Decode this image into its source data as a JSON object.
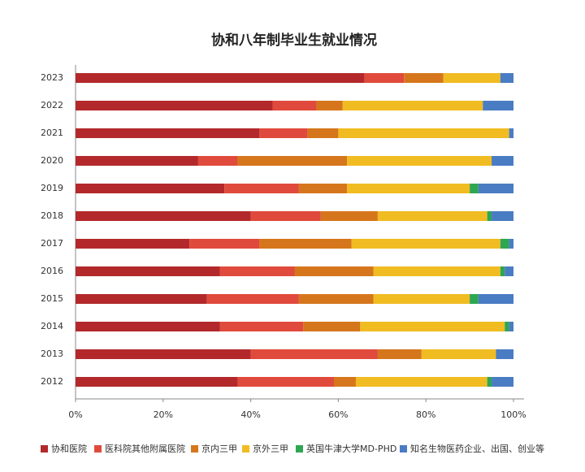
{
  "chart_data": {
    "type": "stacked-barh",
    "title": "协和八年制毕业生就业情况",
    "categories": [
      "2023",
      "2022",
      "2021",
      "2020",
      "2019",
      "2018",
      "2017",
      "2016",
      "2015",
      "2014",
      "2013",
      "2012"
    ],
    "series": [
      {
        "name": "协和医院",
        "color": "#b3292b",
        "values": [
          66,
          45,
          42,
          28,
          34,
          40,
          26,
          33,
          30,
          33,
          40,
          37
        ]
      },
      {
        "name": "医科院其他附属医院",
        "color": "#e04a3c",
        "values": [
          9,
          10,
          11,
          9,
          17,
          16,
          16,
          17,
          21,
          19,
          29,
          22
        ]
      },
      {
        "name": "京内三甲",
        "color": "#d6761c",
        "values": [
          9,
          6,
          7,
          25,
          11,
          13,
          21,
          18,
          17,
          13,
          10,
          5
        ]
      },
      {
        "name": "京外三甲",
        "color": "#f0bc22",
        "values": [
          13,
          32,
          39,
          33,
          28,
          25,
          34,
          29,
          22,
          33,
          17,
          30
        ]
      },
      {
        "name": "英国牛津大学MD-PHD",
        "color": "#2fa653",
        "values": [
          0,
          0,
          0,
          0,
          2,
          1,
          2,
          1,
          2,
          1,
          0,
          1
        ]
      },
      {
        "name": "知名生物医药企业、出国、创业等",
        "color": "#4a7cc3",
        "values": [
          3,
          7,
          1,
          5,
          8,
          5,
          1,
          2,
          8,
          1,
          4,
          5
        ]
      }
    ],
    "xlim": [
      0,
      100
    ],
    "xticks": [
      {
        "value": 0,
        "label": "0%"
      },
      {
        "value": 20,
        "label": "20%"
      },
      {
        "value": 40,
        "label": "40%"
      },
      {
        "value": 60,
        "label": "60%"
      },
      {
        "value": 80,
        "label": "80%"
      },
      {
        "value": 100,
        "label": "100%"
      }
    ]
  }
}
